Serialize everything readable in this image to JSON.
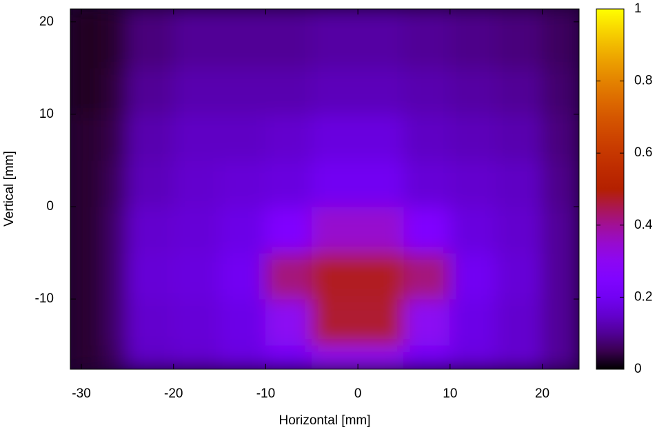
{
  "chart_data": {
    "type": "heatmap",
    "xlabel": "Horizontal [mm]",
    "ylabel": "Vertical [mm]",
    "xlim": [
      -31.2,
      24
    ],
    "ylim": [
      -17.6,
      21.4
    ],
    "xticks": [
      -30,
      -20,
      -10,
      0,
      10,
      20
    ],
    "yticks": [
      -10,
      0,
      10,
      20
    ],
    "xbins": [
      -31.2,
      -27.5,
      -25,
      -20,
      -15,
      -10,
      -5,
      0,
      5,
      10,
      15,
      20,
      24
    ],
    "ybins": [
      -17.6,
      -15,
      -10,
      -5,
      0,
      5,
      10,
      15,
      21.4
    ],
    "z": [
      [
        0.03,
        0.06,
        0.14,
        0.15,
        0.17,
        0.2,
        0.3,
        0.3,
        0.2,
        0.17,
        0.15,
        0.1
      ],
      [
        0.03,
        0.07,
        0.15,
        0.16,
        0.18,
        0.3,
        0.47,
        0.47,
        0.3,
        0.18,
        0.15,
        0.1
      ],
      [
        0.03,
        0.07,
        0.16,
        0.17,
        0.2,
        0.42,
        0.48,
        0.48,
        0.42,
        0.2,
        0.16,
        0.1
      ],
      [
        0.03,
        0.07,
        0.15,
        0.16,
        0.18,
        0.25,
        0.35,
        0.35,
        0.25,
        0.17,
        0.15,
        0.1
      ],
      [
        0.03,
        0.06,
        0.13,
        0.15,
        0.16,
        0.17,
        0.2,
        0.2,
        0.16,
        0.15,
        0.14,
        0.09
      ],
      [
        0.03,
        0.05,
        0.12,
        0.14,
        0.14,
        0.15,
        0.17,
        0.17,
        0.14,
        0.13,
        0.12,
        0.08
      ],
      [
        0.02,
        0.04,
        0.1,
        0.12,
        0.12,
        0.12,
        0.13,
        0.13,
        0.12,
        0.11,
        0.1,
        0.07
      ],
      [
        0.02,
        0.03,
        0.08,
        0.1,
        0.1,
        0.1,
        0.11,
        0.11,
        0.1,
        0.09,
        0.08,
        0.06
      ]
    ],
    "clim": [
      0,
      1
    ],
    "cticks": [
      0,
      0.2,
      0.4,
      0.6,
      0.8,
      1
    ],
    "palette": "rgbformulae 7,5,15"
  }
}
